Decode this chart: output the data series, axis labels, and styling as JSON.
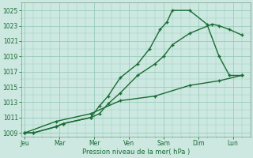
{
  "background_color": "#cce8e0",
  "grid_color": "#99ccbb",
  "line_color": "#1a6b35",
  "x_labels": [
    "Jeu",
    "Mar",
    "Mer",
    "Ven",
    "Sam",
    "Dim",
    "Lun"
  ],
  "x_tick_pos": [
    0,
    2,
    4,
    6,
    8,
    10,
    12
  ],
  "xlabel": "Pression niveau de la mer( hPa )",
  "ylim": [
    1008.5,
    1026.0
  ],
  "yticks": [
    1009,
    1011,
    1013,
    1015,
    1017,
    1019,
    1021,
    1023,
    1025
  ],
  "xlim": [
    -0.2,
    13.0
  ],
  "line1_x": [
    0.0,
    0.5,
    1.8,
    2.2,
    3.8,
    4.3,
    4.8,
    5.5,
    6.5,
    7.5,
    8.0,
    8.5,
    9.5,
    10.8,
    11.2,
    11.8,
    12.5
  ],
  "line1_y": [
    1009.0,
    1009.0,
    1009.8,
    1010.2,
    1011.0,
    1011.5,
    1012.8,
    1014.2,
    1016.5,
    1018.0,
    1019.0,
    1020.5,
    1022.0,
    1023.2,
    1023.0,
    1022.5,
    1021.8
  ],
  "line2_x": [
    0.0,
    0.5,
    1.8,
    2.2,
    3.8,
    4.3,
    4.8,
    5.5,
    6.5,
    7.2,
    7.8,
    8.2,
    8.5,
    9.5,
    10.5,
    11.2,
    11.8,
    12.5
  ],
  "line2_y": [
    1009.0,
    1009.0,
    1009.8,
    1010.2,
    1011.0,
    1012.5,
    1013.8,
    1016.2,
    1018.0,
    1020.0,
    1022.5,
    1023.5,
    1025.0,
    1025.0,
    1023.2,
    1019.0,
    1016.5,
    1016.5
  ],
  "line3_x": [
    0.0,
    1.8,
    3.8,
    5.5,
    7.5,
    9.5,
    11.2,
    12.5
  ],
  "line3_y": [
    1009.0,
    1010.5,
    1011.5,
    1013.2,
    1013.8,
    1015.2,
    1015.8,
    1016.5
  ]
}
